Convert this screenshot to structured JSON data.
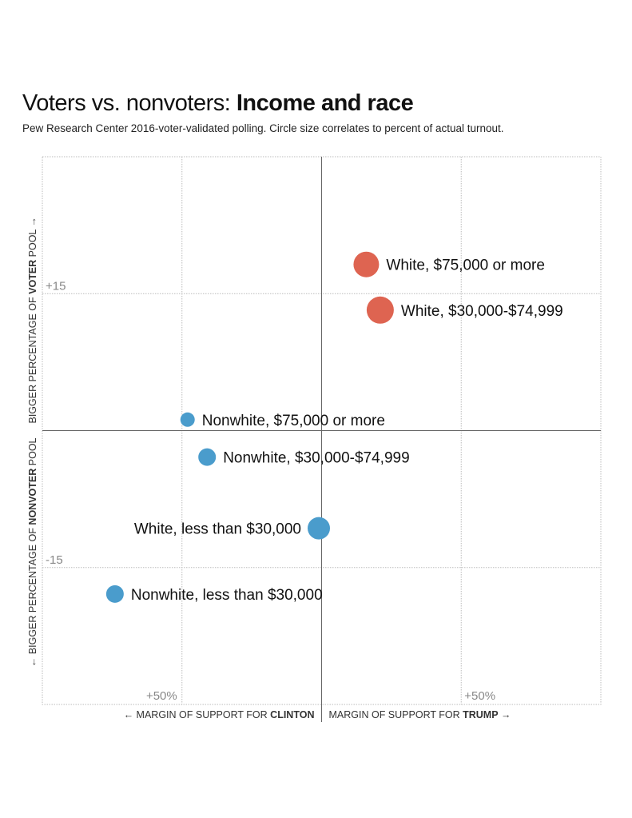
{
  "header": {
    "title_regular": "Voters vs. nonvoters: ",
    "title_bold": "Income and race",
    "subtitle": "Pew Research Center 2016-voter-validated polling. Circle size correlates to percent of actual turnout."
  },
  "chart_data": {
    "type": "scatter",
    "title": "Voters vs. nonvoters: Income and race",
    "subtitle": "Pew Research Center 2016-voter-validated polling. Circle size correlates to percent of actual turnout.",
    "xlim": [
      -100,
      100
    ],
    "ylim": [
      -30,
      30
    ],
    "grid": true,
    "x_ticks": [
      {
        "value": -50,
        "label": "+50%"
      },
      {
        "value": 50,
        "label": "+50%"
      }
    ],
    "y_ticks": [
      {
        "value": 15,
        "label": "+15"
      },
      {
        "value": -15,
        "label": "-15"
      }
    ],
    "xlabel_left": {
      "prefix": "← MARGIN OF SUPPORT FOR ",
      "bold": "CLINTON"
    },
    "xlabel_right": {
      "prefix": "MARGIN OF SUPPORT FOR ",
      "bold": "TRUMP",
      "suffix": " →"
    },
    "ylabel_top": {
      "prefix": "BIGGER PERCENTAGE OF ",
      "bold": "VOTER",
      "suffix": " POOL →"
    },
    "ylabel_bottom": {
      "prefix": "← BIGGER PERCENTAGE OF ",
      "bold": "NONVOTER",
      "suffix": " POOL"
    },
    "colors": {
      "trump": "#de6451",
      "clinton": "#4a9ccc",
      "grid": "#bbbbbb",
      "axis": "#666666"
    },
    "points": [
      {
        "label": "White, $75,000 or more",
        "x": 16,
        "y": 18.2,
        "size": 16,
        "party": "trump",
        "label_side": "right"
      },
      {
        "label": "White, $30,000-$74,999",
        "x": 21,
        "y": 13.2,
        "size": 17,
        "party": "trump",
        "label_side": "right"
      },
      {
        "label": "Nonwhite, $75,000 or more",
        "x": -48,
        "y": 1.2,
        "size": 9,
        "party": "clinton",
        "label_side": "right"
      },
      {
        "label": "Nonwhite, $30,000-$74,999",
        "x": -41,
        "y": -2.9,
        "size": 11,
        "party": "clinton",
        "label_side": "right"
      },
      {
        "label": "White, less than $30,000",
        "x": -1,
        "y": -10.7,
        "size": 14,
        "party": "clinton",
        "label_side": "left"
      },
      {
        "label": "Nonwhite, less than $30,000",
        "x": -74,
        "y": -17.9,
        "size": 11,
        "party": "clinton",
        "label_side": "right"
      }
    ]
  }
}
